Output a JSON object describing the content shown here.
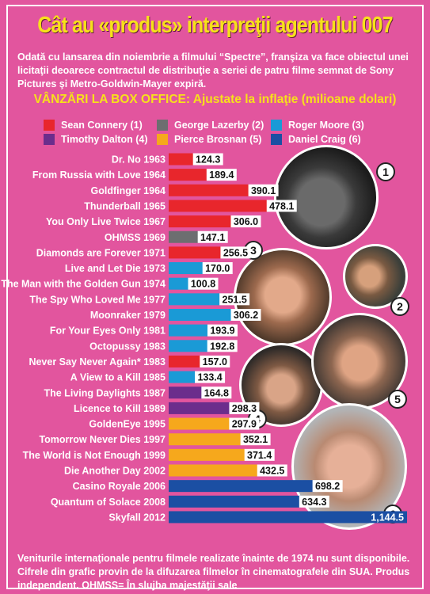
{
  "header": {
    "title": "Cât au «produs» interpreţii agentului 007",
    "intro": "Odată cu lansarea din noiembrie a filmului “Spectre”, franşiza va face obiectul unei licitaţii deoarece contractul de distribuţie a seriei de patru filme semnat de Sony Pictures şi Metro-Goldwin-Mayer expiră.",
    "subtitle": "VÂNZĂRI LA BOX OFFICE: Ajustate la inflaţie (milioane dolari)"
  },
  "legend": [
    {
      "label": "Sean Connery (1)",
      "color": "#e8262c"
    },
    {
      "label": "George Lazerby (2)",
      "color": "#6d6e70"
    },
    {
      "label": "Roger Moore (3)",
      "color": "#1a9ad6"
    },
    {
      "label": "Timothy Dalton (4)",
      "color": "#6b2d8c"
    },
    {
      "label": "Pierce Brosnan (5)",
      "color": "#f6a81c"
    },
    {
      "label": "Daniel Craig (6)",
      "color": "#1b4fa3"
    }
  ],
  "chart_data": {
    "type": "bar",
    "orientation": "horizontal",
    "title": "VÂNZĂRI LA BOX OFFICE: Ajustate la inflaţie (milioane dolari)",
    "categories": [
      "Dr. No 1963",
      "From Russia with Love 1964",
      "Goldfinger 1964",
      "Thunderball 1965",
      "You Only Live Twice 1967",
      "OHMSS 1969",
      "Diamonds are Forever 1971",
      "Live and Let Die 1973",
      "The Man with the Golden Gun 1974",
      "The Spy Who Loved Me 1977",
      "Moonraker 1979",
      "For Your Eyes Only 1981",
      "Octopussy 1983",
      "Never Say Never Again* 1983",
      "A View to a Kill 1985",
      "The Living Daylights 1987",
      "Licence to Kill 1989",
      "GoldenEye 1995",
      "Tomorrow Never Dies 1997",
      "The World is Not Enough 1999",
      "Die Another Day 2002",
      "Casino Royale 2006",
      "Quantum of Solace 2008",
      "Skyfall 2012"
    ],
    "values": [
      124.3,
      189.4,
      390.1,
      478.1,
      306.0,
      147.1,
      256.5,
      170.0,
      100.8,
      251.5,
      306.2,
      193.9,
      192.8,
      157.0,
      133.4,
      164.8,
      298.3,
      297.9,
      352.1,
      371.4,
      432.5,
      698.2,
      634.3,
      1144.5
    ],
    "value_labels": [
      "124.3",
      "189.4",
      "390.1",
      "478.1",
      "306.0",
      "147.1",
      "256.5",
      "170.0",
      "100.8",
      "251.5",
      "306.2",
      "193.9",
      "192.8",
      "157.0",
      "133.4",
      "164.8",
      "298.3",
      "297.9",
      "352.1",
      "371.4",
      "432.5",
      "698.2",
      "634.3",
      "1,144.5"
    ],
    "actor_index": [
      0,
      0,
      0,
      0,
      0,
      1,
      0,
      2,
      2,
      2,
      2,
      2,
      2,
      0,
      2,
      3,
      3,
      4,
      4,
      4,
      4,
      5,
      5,
      5
    ],
    "xlim": [
      0,
      1144.5
    ]
  },
  "portraits": [
    {
      "badge": "1",
      "name": "sean-connery"
    },
    {
      "badge": "2",
      "name": "george-lazenby"
    },
    {
      "badge": "3",
      "name": "roger-moore"
    },
    {
      "badge": "4",
      "name": "timothy-dalton"
    },
    {
      "badge": "5",
      "name": "pierce-brosnan"
    },
    {
      "badge": "6",
      "name": "daniel-craig"
    }
  ],
  "footer": "Veniturile internaţionale pentru filmele realizate înainte de 1974 nu sunt disponibile. Cifrele din grafic provin de la difuzarea filmelor în cinematografele din SUA. Produs independent. OHMSS= În slujba majestăţii sale"
}
